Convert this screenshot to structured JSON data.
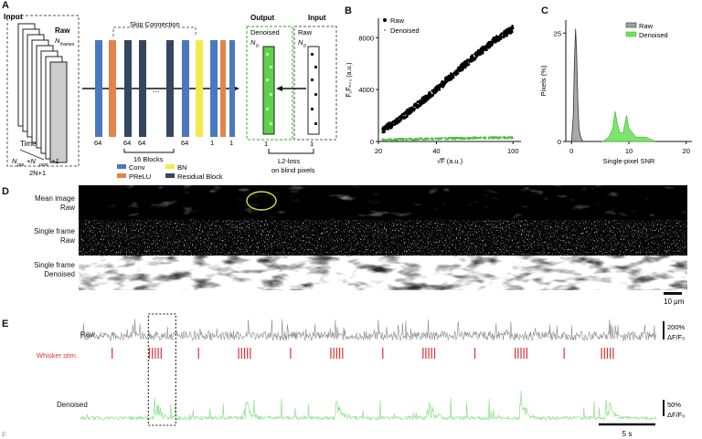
{
  "panels": {
    "A": "A",
    "B": "B",
    "C": "C",
    "D": "D",
    "E": "E"
  },
  "panel_a": {
    "input_label": "Input",
    "raw_label": "Raw",
    "n_frames_label": "N",
    "n_frames_sub": "frames",
    "time_label": "Time",
    "bottom_formula": "N",
    "bottom_formula_rest": "+N",
    "pre_sub": "pre",
    "post_sub": "post",
    "plus_one": "+1",
    "two_n": "2N+1",
    "skip_label": "Skip Connection",
    "channel_labels": [
      "64",
      "64",
      "64",
      "64",
      "1",
      "1"
    ],
    "dots": "...",
    "blocks_label": "16 Blocks",
    "legend": [
      {
        "name": "Conv",
        "color": "#4a78c0"
      },
      {
        "name": "BN",
        "color": "#f6ea4a"
      },
      {
        "name": "PReLU",
        "color": "#e4844a"
      },
      {
        "name": "Residual Block",
        "color": "#34475e"
      }
    ],
    "output_label": "Output",
    "denoised_label": "Denoised",
    "n0": "N",
    "n0_sub": "0",
    "input_right_label": "Input",
    "raw_right_label": "Raw",
    "one_left": "1",
    "one_right": "1",
    "loss_label": "L2-loss",
    "loss_sub": "on blind pixels"
  },
  "chart_b": {
    "type": "scatter",
    "ylabel": "F̅₁F̅ₙ₊₁ (a.u.)",
    "xlabel": "√F̅ (a.u.)",
    "x_ticks": [
      "20",
      "40",
      "100"
    ],
    "y_ticks": [
      "0",
      "4000",
      "8000"
    ],
    "x_scale": "log",
    "xlim": [
      20,
      110
    ],
    "ylim": [
      0,
      9500
    ],
    "series": [
      {
        "name": "Raw",
        "color": "#000000",
        "x": [
          21,
          25,
          30,
          35,
          40,
          45,
          50,
          60,
          70,
          80,
          90,
          100
        ],
        "y": [
          900,
          1600,
          2500,
          3300,
          4000,
          4700,
          5300,
          6300,
          7100,
          7800,
          8300,
          8700
        ]
      },
      {
        "name": "Denoised",
        "color": "#4ec23c",
        "x": [
          21,
          30,
          40,
          50,
          70,
          100
        ],
        "y": [
          140,
          180,
          220,
          240,
          270,
          300
        ]
      }
    ],
    "legend": [
      "Raw",
      "Denoised"
    ],
    "legend_position": "top-left"
  },
  "chart_c": {
    "type": "area",
    "ylabel": "Pixels (%)",
    "xlabel": "Single-pixel SNR",
    "x_ticks": [
      "0",
      "10",
      "20"
    ],
    "y_ticks": [
      "0",
      "25"
    ],
    "xlim": [
      -1,
      21
    ],
    "ylim": [
      0,
      28
    ],
    "series": [
      {
        "name": "Raw",
        "color": "#a0a0a0",
        "x": [
          0,
          0.3,
          0.5,
          0.7,
          0.9,
          1.1,
          1.3,
          1.6,
          2.0
        ],
        "y": [
          0,
          6,
          18,
          26,
          20,
          9,
          3,
          1,
          0
        ]
      },
      {
        "name": "Denoised",
        "color": "#72e060",
        "x": [
          5.5,
          6.5,
          7.2,
          7.6,
          8.0,
          8.4,
          9.0,
          9.6,
          10.0,
          10.6,
          11.2,
          12.0,
          13.0,
          13.8,
          14.5
        ],
        "y": [
          0,
          1,
          3,
          7,
          4,
          2,
          2,
          6,
          3,
          2,
          1,
          1,
          1,
          0.5,
          0
        ]
      }
    ],
    "legend": [
      "Raw",
      "Denoised"
    ],
    "legend_position": "top-right"
  },
  "panel_d": {
    "rows": [
      {
        "line1": "Mean image",
        "line2": "Raw"
      },
      {
        "line1": "Single frame",
        "line2": "Raw"
      },
      {
        "line1": "Single frame",
        "line2": "Denoised"
      }
    ],
    "scale_label": "10 μm"
  },
  "panel_e": {
    "raw_label": "Raw",
    "stim_label": "Whisker stim.",
    "denoised_label": "Denoised",
    "raw_scale": "200%",
    "raw_scale_unit": "ΔF/F₀",
    "den_scale": "50%",
    "den_scale_unit": "ΔF/F₀",
    "time_scale": "5 s",
    "stim_groups": [
      {
        "t": 0.055,
        "n": 1
      },
      {
        "t": 0.13,
        "n": 5
      },
      {
        "t": 0.205,
        "n": 1
      },
      {
        "t": 0.285,
        "n": 5
      },
      {
        "t": 0.365,
        "n": 1
      },
      {
        "t": 0.445,
        "n": 5
      },
      {
        "t": 0.525,
        "n": 1
      },
      {
        "t": 0.605,
        "n": 5
      },
      {
        "t": 0.685,
        "n": 1
      },
      {
        "t": 0.765,
        "n": 5
      },
      {
        "t": 0.84,
        "n": 1
      },
      {
        "t": 0.915,
        "n": 5
      }
    ],
    "colors": {
      "raw": "#8a8a8a",
      "denoised": "#8fe08a",
      "stim": "#e03030"
    }
  },
  "bottom_cut": "F"
}
